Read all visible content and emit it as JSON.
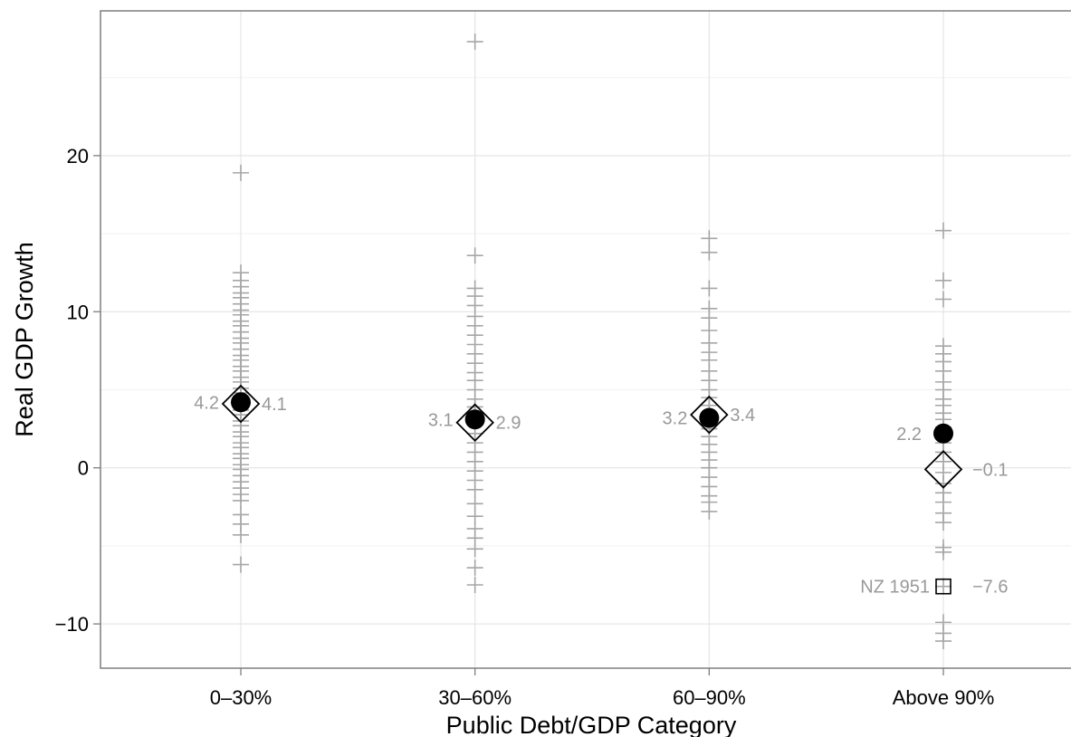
{
  "chart_data": {
    "type": "scatter",
    "xlabel": "Public Debt/GDP Category",
    "ylabel": "Real GDP Growth",
    "categories": [
      "0–30%",
      "30–60%",
      "60–90%",
      "Above 90%"
    ],
    "ylim": [
      -12.5,
      29.5
    ],
    "yticks": [
      {
        "value": -10,
        "label": "−10"
      },
      {
        "value": 0,
        "label": "0"
      },
      {
        "value": 10,
        "label": "10"
      },
      {
        "value": 20,
        "label": "20"
      }
    ],
    "grid": true,
    "colors": {
      "observation": "#a6a6a6",
      "mean_label": "#999999",
      "axis_text": "#000000",
      "grid_major": "#e5e5e5",
      "grid_minor": "#f2f2f2",
      "panel_border": "#7f7f7f"
    },
    "series": [
      {
        "marker": "plus",
        "values": [
          [
            18.9,
            12.5,
            12.0,
            11.6,
            11.2,
            10.9,
            10.5,
            10.1,
            9.8,
            9.4,
            9.1,
            8.7,
            8.3,
            8.0,
            7.6,
            7.2,
            6.9,
            6.5,
            6.2,
            5.8,
            5.5,
            5.1,
            4.8,
            4.4,
            4.1,
            3.7,
            3.4,
            3.0,
            2.7,
            2.3,
            2.0,
            1.6,
            1.3,
            0.9,
            0.6,
            0.2,
            -0.1,
            -0.5,
            -0.9,
            -1.3,
            -1.7,
            -2.1,
            -3.0,
            -3.6,
            -4.3,
            -6.2
          ],
          [
            27.3,
            13.6,
            11.5,
            11.0,
            10.4,
            9.7,
            9.1,
            8.5,
            7.9,
            7.3,
            6.7,
            6.1,
            5.6,
            5.0,
            4.4,
            3.9,
            3.3,
            2.8,
            2.2,
            1.6,
            1.0,
            0.4,
            -0.2,
            -0.8,
            -1.4,
            -2.3,
            -3.1,
            -3.9,
            -4.5,
            -5.2,
            -6.4,
            -7.5
          ],
          [
            14.7,
            13.8,
            11.5,
            10.2,
            9.6,
            8.8,
            8.0,
            7.4,
            6.9,
            6.2,
            5.6,
            5.0,
            4.5,
            4.0,
            3.5,
            3.0,
            2.5,
            2.0,
            1.5,
            1.0,
            0.5,
            0.0,
            -0.6,
            -1.2,
            -1.8,
            -2.2,
            -2.8
          ],
          [
            15.2,
            12.0,
            10.8,
            7.8,
            7.3,
            6.8,
            6.2,
            5.5,
            5.0,
            4.4,
            4.0,
            3.5,
            3.1,
            2.6,
            2.1,
            1.6,
            1.0,
            0.4,
            -0.3,
            -1.0,
            -1.6,
            -2.2,
            -2.9,
            -3.5,
            -5.1,
            -5.4,
            -7.6,
            -9.9,
            -10.6,
            -11.1
          ]
        ]
      },
      {
        "name": "mean",
        "marker": "filled-circle",
        "values": [
          4.2,
          3.1,
          3.2,
          2.2
        ],
        "labels": [
          "4.2",
          "3.1",
          "3.2",
          "2.2"
        ]
      },
      {
        "name": "median",
        "marker": "open-diamond",
        "values": [
          4.1,
          2.9,
          3.4,
          -0.1
        ],
        "labels": [
          "4.1",
          "2.9",
          "3.4",
          "−0.1"
        ]
      }
    ],
    "annotations": [
      {
        "category": "Above 90%",
        "value": -7.6,
        "marker": "open-square",
        "label_left": "NZ 1951",
        "label_right": "−7.6"
      }
    ]
  }
}
